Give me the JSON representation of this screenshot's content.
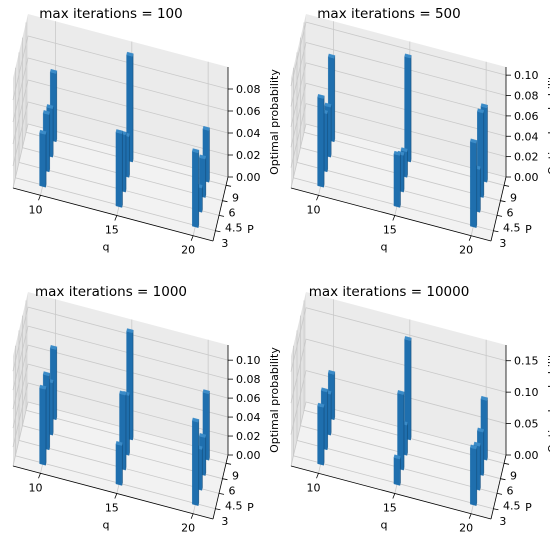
{
  "chart_data": [
    {
      "type": "bar3d",
      "title": "max iterations = 100",
      "xlabel": "q",
      "ylabel": "P",
      "zlabel": "Optimal probability",
      "xticks": [
        "10",
        "15",
        "20"
      ],
      "yticks": [
        "3",
        "4.5",
        "6",
        "9"
      ],
      "zticks": [
        "0.00",
        "0.02",
        "0.04",
        "0.06",
        "0.08"
      ],
      "zlim": [
        0,
        0.1
      ],
      "bars": [
        {
          "q": 10,
          "P": 3,
          "value": 0.048
        },
        {
          "q": 10,
          "P": 4.5,
          "value": 0.052
        },
        {
          "q": 10,
          "P": 6,
          "value": 0.044
        },
        {
          "q": 10,
          "P": 9,
          "value": 0.062
        },
        {
          "q": 15,
          "P": 3,
          "value": 0.067
        },
        {
          "q": 15,
          "P": 4.5,
          "value": 0.052
        },
        {
          "q": 15,
          "P": 6,
          "value": 0.037
        },
        {
          "q": 15,
          "P": 9,
          "value": 0.096
        },
        {
          "q": 20,
          "P": 3,
          "value": 0.068
        },
        {
          "q": 20,
          "P": 4.5,
          "value": 0.022
        },
        {
          "q": 20,
          "P": 6,
          "value": 0.035
        },
        {
          "q": 20,
          "P": 9,
          "value": 0.047
        }
      ]
    },
    {
      "type": "bar3d",
      "title": "max iterations = 500",
      "xlabel": "q",
      "ylabel": "P",
      "zlabel": "Optimal probability",
      "xticks": [
        "10",
        "15",
        "20"
      ],
      "yticks": [
        "3",
        "4.5",
        "6",
        "9"
      ],
      "zticks": [
        "0.00",
        "0.02",
        "0.04",
        "0.06",
        "0.08",
        "0.10"
      ],
      "zlim": [
        0,
        0.108
      ],
      "bars": [
        {
          "q": 10,
          "P": 3,
          "value": 0.087
        },
        {
          "q": 10,
          "P": 4.5,
          "value": 0.057
        },
        {
          "q": 10,
          "P": 6,
          "value": 0.049
        },
        {
          "q": 10,
          "P": 9,
          "value": 0.082
        },
        {
          "q": 15,
          "P": 3,
          "value": 0.051
        },
        {
          "q": 15,
          "P": 4.5,
          "value": 0.036
        },
        {
          "q": 15,
          "P": 6,
          "value": 0.025
        },
        {
          "q": 15,
          "P": 9,
          "value": 0.102
        },
        {
          "q": 20,
          "P": 3,
          "value": 0.083
        },
        {
          "q": 20,
          "P": 4.5,
          "value": 0.042
        },
        {
          "q": 20,
          "P": 6,
          "value": 0.083
        },
        {
          "q": 20,
          "P": 9,
          "value": 0.073
        }
      ]
    },
    {
      "type": "bar3d",
      "title": "max iterations = 1000",
      "xlabel": "q",
      "ylabel": "P",
      "zlabel": "Optimal probability",
      "xticks": [
        "10",
        "15",
        "20"
      ],
      "yticks": [
        "3",
        "4.5",
        "6",
        "9"
      ],
      "zticks": [
        "0.00",
        "0.02",
        "0.04",
        "0.06",
        "0.08",
        "0.10"
      ],
      "zlim": [
        0,
        0.116
      ],
      "bars": [
        {
          "q": 10,
          "P": 3,
          "value": 0.08
        },
        {
          "q": 10,
          "P": 4.5,
          "value": 0.078
        },
        {
          "q": 10,
          "P": 6,
          "value": 0.055
        },
        {
          "q": 10,
          "P": 9,
          "value": 0.074
        },
        {
          "q": 15,
          "P": 3,
          "value": 0.042
        },
        {
          "q": 15,
          "P": 4.5,
          "value": 0.079
        },
        {
          "q": 15,
          "P": 6,
          "value": 0.063
        },
        {
          "q": 15,
          "P": 9,
          "value": 0.113
        },
        {
          "q": 20,
          "P": 3,
          "value": 0.088
        },
        {
          "q": 20,
          "P": 4.5,
          "value": 0.043
        },
        {
          "q": 20,
          "P": 6,
          "value": 0.04
        },
        {
          "q": 20,
          "P": 9,
          "value": 0.07
        }
      ]
    },
    {
      "type": "bar3d",
      "title": "max iterations = 10000",
      "xlabel": "q",
      "ylabel": "P",
      "zlabel": "Optimal probability",
      "xticks": [
        "10",
        "15",
        "20"
      ],
      "yticks": [
        "3",
        "4.5",
        "6",
        "9"
      ],
      "zticks": [
        "0.00",
        "0.05",
        "0.10",
        "0.15"
      ],
      "zlim": [
        0,
        0.175
      ],
      "bars": [
        {
          "q": 10,
          "P": 3,
          "value": 0.092
        },
        {
          "q": 10,
          "P": 4.5,
          "value": 0.092
        },
        {
          "q": 10,
          "P": 6,
          "value": 0.065
        },
        {
          "q": 10,
          "P": 9,
          "value": 0.072
        },
        {
          "q": 15,
          "P": 3,
          "value": 0.042
        },
        {
          "q": 15,
          "P": 4.5,
          "value": 0.12
        },
        {
          "q": 15,
          "P": 6,
          "value": 0.048
        },
        {
          "q": 15,
          "P": 9,
          "value": 0.158
        },
        {
          "q": 20,
          "P": 3,
          "value": 0.09
        },
        {
          "q": 20,
          "P": 4.5,
          "value": 0.07
        },
        {
          "q": 20,
          "P": 6,
          "value": 0.069
        },
        {
          "q": 20,
          "P": 9,
          "value": 0.095
        }
      ]
    }
  ],
  "colors": {
    "bar_front": "#1f6fae",
    "bar_side": "#16507f",
    "bar_top": "#3a8bc8",
    "pane_back": "#ebebeb",
    "pane_side": "#e2e2e2",
    "pane_floor": "#f2f2f2",
    "grid": "#c9c9c9"
  }
}
